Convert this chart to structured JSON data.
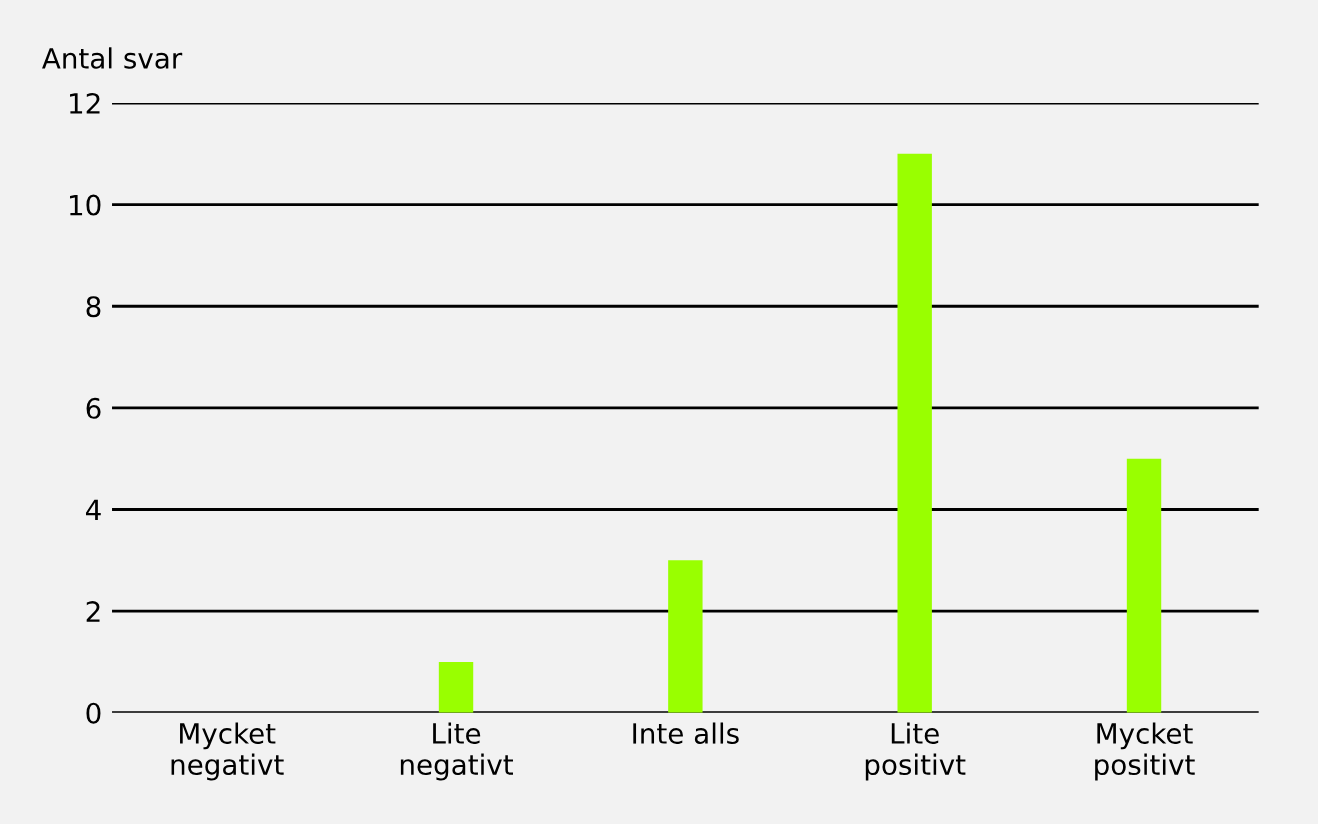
{
  "chart_data": {
    "type": "bar",
    "ylabel": "Antal svar",
    "categories": [
      "Mycket\nnegativt",
      "Lite\nnegativt",
      "Inte alls",
      "Lite\npositivt",
      "Mycket\npositivt"
    ],
    "values": [
      0,
      1,
      3,
      11,
      5
    ],
    "color": "#99ff00",
    "ylim": [
      0,
      12
    ],
    "yticks": [
      0,
      2,
      4,
      6,
      8,
      10,
      12
    ],
    "grid": "y"
  }
}
